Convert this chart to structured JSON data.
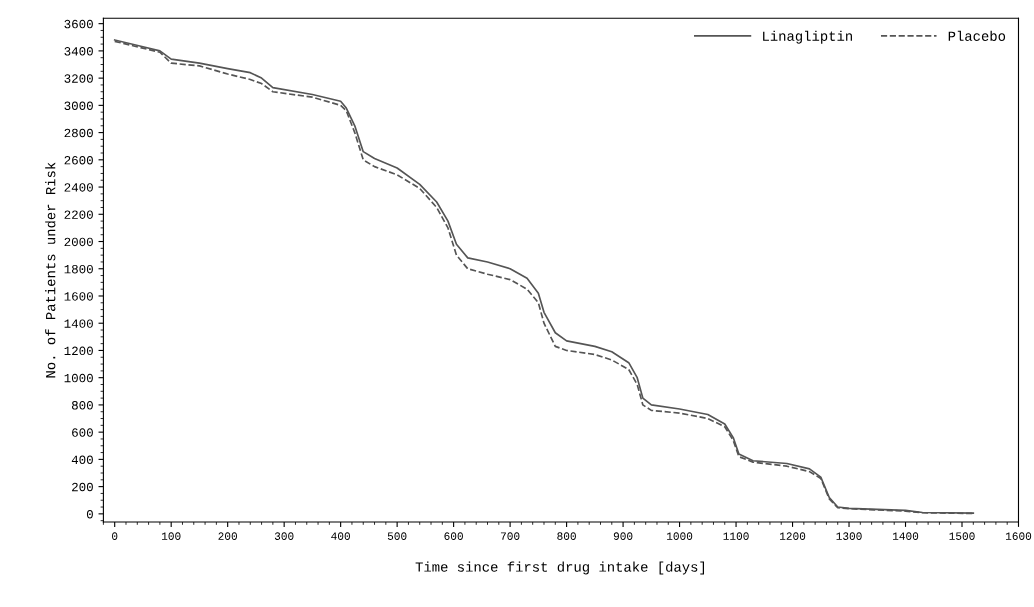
{
  "chart_data": {
    "type": "line",
    "xlabel": "Time since first drug intake [days]",
    "ylabel": "No. of Patients under Risk",
    "xlim": [
      -20,
      1600
    ],
    "ylim": [
      -60,
      3640
    ],
    "xticks": [
      0,
      100,
      200,
      300,
      400,
      500,
      600,
      700,
      800,
      900,
      1000,
      1100,
      1200,
      1300,
      1400,
      1500,
      1600
    ],
    "yticks": [
      0,
      200,
      400,
      600,
      800,
      1000,
      1200,
      1400,
      1600,
      1800,
      2000,
      2200,
      2400,
      2600,
      2800,
      3000,
      3200,
      3400,
      3600
    ],
    "grid": false,
    "legend": "top right",
    "marker": "none",
    "series": [
      {
        "name": "Linagliptin",
        "color": "#555555",
        "line_style": "solid",
        "x": [
          0,
          50,
          80,
          100,
          150,
          200,
          240,
          260,
          280,
          350,
          400,
          410,
          425,
          440,
          460,
          500,
          540,
          570,
          590,
          605,
          625,
          660,
          700,
          730,
          750,
          760,
          780,
          800,
          850,
          880,
          910,
          925,
          935,
          950,
          1000,
          1050,
          1080,
          1095,
          1105,
          1130,
          1190,
          1230,
          1250,
          1265,
          1280,
          1300,
          1400,
          1430,
          1520
        ],
        "values": [
          3480,
          3430,
          3400,
          3340,
          3310,
          3270,
          3240,
          3200,
          3130,
          3080,
          3030,
          2980,
          2850,
          2660,
          2610,
          2540,
          2420,
          2290,
          2150,
          1980,
          1880,
          1850,
          1800,
          1730,
          1620,
          1480,
          1330,
          1270,
          1230,
          1190,
          1110,
          1000,
          850,
          800,
          770,
          730,
          660,
          560,
          440,
          390,
          370,
          330,
          270,
          120,
          50,
          40,
          25,
          10,
          5
        ]
      },
      {
        "name": "Placebo",
        "color": "#555555",
        "line_style": "dashed",
        "x": [
          0,
          50,
          80,
          100,
          150,
          200,
          240,
          260,
          280,
          350,
          400,
          410,
          425,
          440,
          460,
          500,
          540,
          570,
          590,
          605,
          625,
          660,
          700,
          730,
          750,
          760,
          780,
          800,
          850,
          880,
          910,
          925,
          935,
          950,
          1000,
          1050,
          1080,
          1095,
          1105,
          1130,
          1190,
          1230,
          1250,
          1265,
          1280,
          1300,
          1400,
          1430,
          1520
        ],
        "values": [
          3470,
          3420,
          3390,
          3310,
          3290,
          3230,
          3190,
          3160,
          3100,
          3060,
          3000,
          2960,
          2800,
          2600,
          2550,
          2490,
          2390,
          2250,
          2100,
          1900,
          1800,
          1760,
          1720,
          1650,
          1550,
          1400,
          1230,
          1200,
          1170,
          1130,
          1060,
          950,
          800,
          760,
          740,
          700,
          640,
          540,
          420,
          380,
          350,
          310,
          260,
          110,
          45,
          38,
          20,
          8,
          3
        ]
      }
    ]
  }
}
